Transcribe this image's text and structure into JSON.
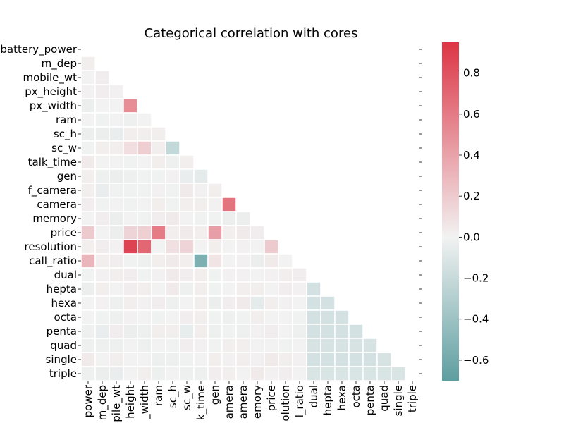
{
  "chart_data": {
    "type": "heatmap",
    "title": "Categorical correlation with cores",
    "labels": [
      "battery_power",
      "m_dep",
      "mobile_wt",
      "px_height",
      "px_width",
      "ram",
      "sc_h",
      "sc_w",
      "talk_time",
      "gen",
      "f_camera",
      "camera",
      "memory",
      "price",
      "resolution",
      "call_ratio",
      "dual",
      "hepta",
      "hexa",
      "octa",
      "penta",
      "quad",
      "single",
      "triple"
    ],
    "x_tick_labels_visible": [
      "power",
      "m_dep",
      "pile_wt",
      "height",
      "_width",
      "ram",
      "sc_h",
      "sc_w",
      "k_time",
      "gen",
      "amera",
      "amera",
      "emory",
      "price",
      "olution",
      "l_ratio",
      "dual",
      "hepta",
      "hexa",
      "octa",
      "penta",
      "quad",
      "single",
      "triple"
    ],
    "mask": "upper_triangle_including_diagonal",
    "lower_triangle_values": [
      [],
      [
        0.02
      ],
      [
        0.0,
        0.03
      ],
      [
        0.01,
        0.03,
        0.01
      ],
      [
        -0.03,
        0.0,
        0.0,
        0.51
      ],
      [
        0.0,
        -0.01,
        0.0,
        -0.02,
        0.0
      ],
      [
        -0.03,
        -0.03,
        -0.04,
        0.02,
        0.02,
        0.02
      ],
      [
        -0.01,
        0.02,
        0.02,
        0.1,
        0.18,
        0.02,
        -0.22
      ],
      [
        0.04,
        0.0,
        0.0,
        -0.01,
        0.0,
        0.02,
        -0.02,
        0.02
      ],
      [
        0.02,
        -0.02,
        -0.03,
        -0.02,
        -0.01,
        -0.01,
        0.01,
        -0.04,
        -0.06
      ],
      [
        0.02,
        -0.04,
        -0.01,
        -0.01,
        -0.01,
        0.01,
        -0.01,
        0.04,
        0.01,
        0.02
      ],
      [
        0.03,
        -0.01,
        0.0,
        -0.01,
        0.0,
        0.02,
        -0.01,
        0.02,
        0.02,
        0.01,
        0.64
      ],
      [
        0.0,
        0.03,
        -0.03,
        0.0,
        -0.01,
        0.03,
        0.04,
        0.0,
        -0.01,
        -0.01,
        -0.03,
        -0.03
      ],
      [
        0.2,
        0.0,
        -0.03,
        0.15,
        0.17,
        0.6,
        0.02,
        0.04,
        0.02,
        0.42,
        0.02,
        0.04,
        0.03
      ],
      [
        0.02,
        0.03,
        0.01,
        0.88,
        0.7,
        0.0,
        0.09,
        0.15,
        0.0,
        0.02,
        0.0,
        0.01,
        0.0,
        0.2
      ],
      [
        0.3,
        0.02,
        0.03,
        -0.01,
        -0.02,
        0.02,
        0.04,
        0.02,
        -0.55,
        0.07,
        0.0,
        0.01,
        -0.03,
        0.04,
        0.0
      ],
      [
        -0.01,
        0.01,
        0.02,
        0.03,
        -0.01,
        0.01,
        0.04,
        0.03,
        0.02,
        -0.01,
        0.01,
        0.01,
        0.0,
        0.01,
        0.02,
        0.03
      ],
      [
        -0.03,
        0.02,
        0.0,
        0.03,
        0.02,
        0.0,
        0.04,
        -0.02,
        0.02,
        -0.01,
        0.0,
        0.02,
        0.02,
        0.0,
        0.03,
        0.01,
        -0.14
      ],
      [
        0.0,
        0.01,
        -0.02,
        0.02,
        0.01,
        0.03,
        -0.02,
        0.0,
        0.02,
        -0.03,
        0.03,
        0.04,
        -0.06,
        0.02,
        0.01,
        0.0,
        -0.14,
        -0.14
      ],
      [
        0.0,
        -0.01,
        -0.02,
        0.01,
        0.0,
        -0.01,
        0.0,
        0.03,
        0.02,
        -0.01,
        -0.02,
        -0.01,
        0.02,
        0.0,
        0.0,
        -0.01,
        -0.14,
        -0.14,
        -0.14
      ],
      [
        -0.02,
        -0.04,
        0.03,
        -0.03,
        -0.02,
        0.02,
        0.02,
        -0.05,
        0.02,
        -0.02,
        -0.01,
        -0.02,
        0.01,
        0.03,
        0.0,
        -0.02,
        -0.14,
        -0.14,
        -0.14,
        -0.14
      ],
      [
        -0.02,
        -0.02,
        -0.02,
        0.0,
        -0.02,
        0.0,
        -0.01,
        0.03,
        0.01,
        -0.01,
        0.02,
        0.02,
        0.0,
        0.0,
        -0.01,
        0.0,
        -0.13,
        -0.13,
        -0.13,
        -0.13,
        -0.13
      ],
      [
        0.04,
        0.0,
        0.02,
        0.0,
        0.0,
        -0.02,
        -0.02,
        -0.01,
        0.0,
        0.02,
        0.01,
        0.02,
        0.01,
        0.04,
        0.02,
        0.01,
        -0.14,
        -0.14,
        -0.14,
        -0.14,
        -0.14,
        -0.13
      ],
      [
        -0.02,
        -0.03,
        -0.04,
        0.0,
        0.02,
        -0.02,
        0.0,
        -0.02,
        -0.02,
        0.03,
        0.02,
        0.0,
        0.04,
        0.01,
        0.03,
        0.0,
        -0.12,
        -0.12,
        -0.12,
        -0.12,
        -0.12,
        -0.12,
        -0.12
      ]
    ],
    "colorbar": {
      "range": [
        -0.7,
        0.95
      ],
      "ticks": [
        -0.6,
        -0.4,
        -0.2,
        0.0,
        0.2,
        0.4,
        0.6,
        0.8
      ],
      "tick_labels": [
        "−0.6",
        "−0.4",
        "−0.2",
        "0.0",
        "0.2",
        "0.4",
        "0.6",
        "0.8"
      ],
      "colormap": "diverging teal–white–red"
    },
    "colors": {
      "negative": "#5e9ea0",
      "neutral": "#f2f2f2",
      "positive": "#dc3545"
    },
    "grid": "white cell borders",
    "legend": "colorbar on right"
  }
}
